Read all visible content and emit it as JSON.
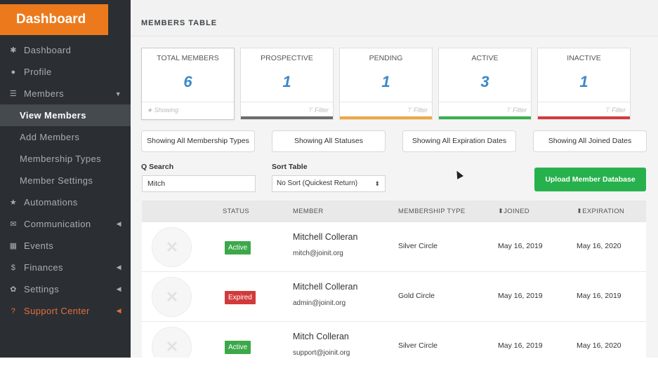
{
  "sidebar": {
    "brand": "Dashboard",
    "items": [
      {
        "icon": "✱",
        "label": "Dashboard"
      },
      {
        "icon": "●",
        "label": "Profile"
      },
      {
        "icon": "☰",
        "label": "Members",
        "caret": "▼"
      },
      {
        "label": "View Members"
      },
      {
        "label": "Add Members"
      },
      {
        "label": "Membership Types"
      },
      {
        "label": "Member Settings"
      },
      {
        "icon": "★",
        "label": "Automations"
      },
      {
        "icon": "✉",
        "label": "Communication",
        "caret": "◀"
      },
      {
        "icon": "▦",
        "label": "Events"
      },
      {
        "icon": "$",
        "label": "Finances",
        "caret": "◀"
      },
      {
        "icon": "✿",
        "label": "Settings",
        "caret": "◀"
      },
      {
        "icon": "?",
        "label": "Support Center",
        "caret": "◀"
      }
    ]
  },
  "header": {
    "title": "MEMBERS TABLE"
  },
  "stats": [
    {
      "label": "TOTAL MEMBERS",
      "value": "6",
      "foot": "★ Showing"
    },
    {
      "label": "PROSPECTIVE",
      "value": "1",
      "foot": "⊤ Filter",
      "bar_color": "#6d6d6d"
    },
    {
      "label": "PENDING",
      "value": "1",
      "foot": "⊤ Filter",
      "bar_color": "#f0a741"
    },
    {
      "label": "ACTIVE",
      "value": "3",
      "foot": "⊤ Filter",
      "bar_color": "#36b14f"
    },
    {
      "label": "INACTIVE",
      "value": "1",
      "foot": "⊤ Filter",
      "bar_color": "#d33b3b"
    }
  ],
  "filters": {
    "membership_types": "Showing All Membership Types",
    "statuses": "Showing All Statuses",
    "expiration_dates": "Showing All Expiration Dates",
    "joined_dates": "Showing All Joined Dates"
  },
  "search": {
    "label": "Q Search",
    "value": "Mitch"
  },
  "sort": {
    "label": "Sort Table",
    "value": "No Sort (Quickest Return)",
    "arrow": "⬍"
  },
  "upload_label": "Upload Member Database",
  "table": {
    "headers": {
      "status": "STATUS",
      "member": "MEMBER",
      "membership_type": "MEMBERSHIP TYPE",
      "joined": "⬍JOINED",
      "expiration": "⬍EXPIRATION"
    },
    "rows": [
      {
        "status": "Active",
        "status_color": "#3ca84a",
        "name": "Mitchell Colleran",
        "email": "mitch@joinit.org",
        "type": "Silver Circle",
        "joined": "May 16, 2019",
        "expiration": "May 16, 2020"
      },
      {
        "status": "Expired",
        "status_color": "#d23a3a",
        "name": "Mitchell Colleran",
        "email": "admin@joinit.org",
        "type": "Gold Circle",
        "joined": "May 16, 2019",
        "expiration": "May 16, 2019"
      },
      {
        "status": "Active",
        "status_color": "#3ca84a",
        "name": "Mitch Colleran",
        "email": "support@joinit.org",
        "type": "Silver Circle",
        "joined": "May 16, 2019",
        "expiration": "May 16, 2020"
      }
    ]
  }
}
